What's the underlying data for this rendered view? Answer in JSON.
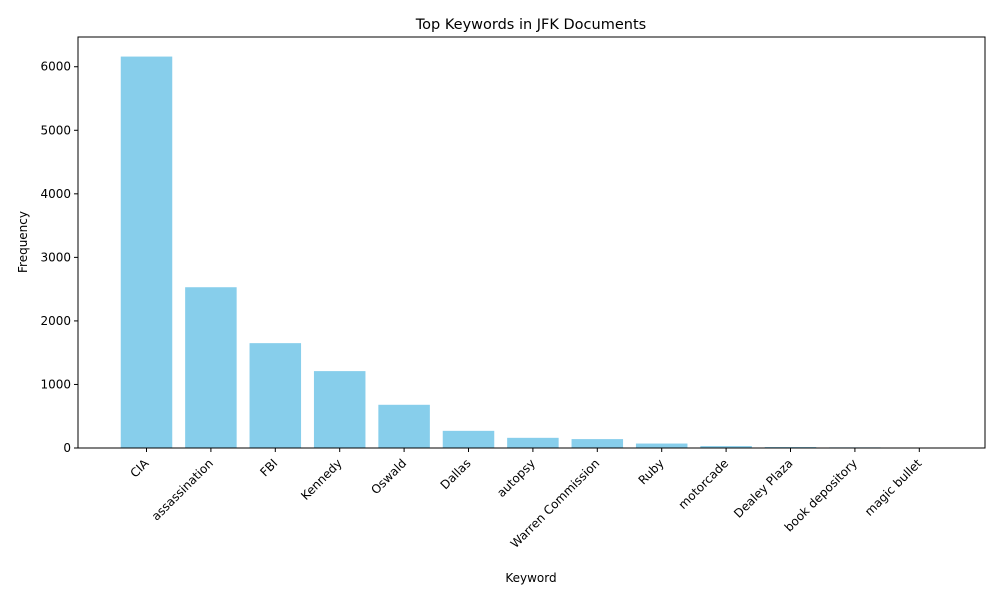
{
  "chart_data": {
    "type": "bar",
    "title": "Top Keywords in JFK Documents",
    "xlabel": "Keyword",
    "ylabel": "Frequency",
    "categories": [
      "CIA",
      "assassination",
      "FBI",
      "Kennedy",
      "Oswald",
      "Dallas",
      "autopsy",
      "Warren Commission",
      "Ruby",
      "motorcade",
      "Dealey Plaza",
      "book depository",
      "magic bullet"
    ],
    "values": [
      6160,
      2530,
      1650,
      1210,
      680,
      270,
      160,
      140,
      70,
      30,
      15,
      10,
      3
    ],
    "ylim": [
      0,
      6468
    ],
    "yticks": [
      0,
      1000,
      2000,
      3000,
      4000,
      5000,
      6000
    ],
    "bar_color": "#87ceeb",
    "grid": false,
    "legend": "none"
  }
}
